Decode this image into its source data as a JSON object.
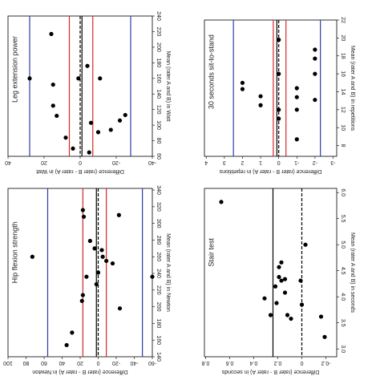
{
  "chart_data": [
    {
      "type": "scatter",
      "title": "Leg extension power",
      "xlabel": "Mean (rater A and B) in Watt",
      "ylabel": "Difference (rater B - rater A) in Watt",
      "x": [
        217,
        160,
        152,
        125,
        112,
        84,
        70,
        160,
        176,
        103,
        65,
        160,
        91,
        94,
        106,
        113
      ],
      "values": [
        16,
        28,
        15,
        15,
        13,
        8,
        4,
        1,
        -4,
        -6,
        -5,
        -11,
        -10,
        -17,
        -22,
        -25
      ],
      "xlim": [
        60,
        240
      ],
      "xticks": [
        60,
        80,
        100,
        120,
        140,
        160,
        180,
        200,
        220,
        240
      ],
      "ylim": [
        40,
        -40
      ],
      "yticks": [
        40,
        20,
        0,
        -20,
        -40
      ],
      "lines": [
        {
          "value": 28,
          "color": "#2a3ea8",
          "style": "solid"
        },
        {
          "value": -28,
          "color": "#2a3ea8",
          "style": "solid"
        },
        {
          "value": 6,
          "color": "#d62828",
          "style": "solid"
        },
        {
          "value": -7,
          "color": "#d62828",
          "style": "solid"
        },
        {
          "value": -1,
          "color": "#000000",
          "style": "solid"
        },
        {
          "value": 0,
          "color": "#000000",
          "style": "dashed"
        }
      ]
    },
    {
      "type": "scatter",
      "title": "30 seconds sit-to-stand",
      "xlabel": "Mean (rater A and B) in repetitions",
      "ylabel": "Difference (rater B - rater A) in repetitions",
      "x": [
        15,
        14.3,
        13.5,
        12.5,
        19.8,
        16,
        12,
        11,
        14.4,
        13.4,
        12,
        8.7,
        18.7,
        17.7,
        16,
        13.1
      ],
      "values": [
        2,
        2,
        1,
        1,
        0,
        0,
        0,
        0,
        -1,
        -1,
        -1,
        -1,
        -2,
        -2,
        -2,
        -2
      ],
      "xlim": [
        6.8,
        22
      ],
      "xticks": [
        8,
        10,
        12,
        14,
        16,
        18,
        20,
        22
      ],
      "ylim": [
        4.1,
        -3.2
      ],
      "yticks": [
        4,
        3,
        2,
        1,
        0,
        -1,
        -2,
        -3
      ],
      "lines": [
        {
          "value": 2.5,
          "color": "#2a3ea8",
          "style": "solid"
        },
        {
          "value": -2.3,
          "color": "#2a3ea8",
          "style": "solid"
        },
        {
          "value": 0.3,
          "color": "#d62828",
          "style": "solid"
        },
        {
          "value": -0.4,
          "color": "#d62828",
          "style": "solid"
        },
        {
          "value": 0.1,
          "color": "#000000",
          "style": "solid"
        },
        {
          "value": 0,
          "color": "#000000",
          "style": "dashed"
        }
      ]
    },
    {
      "type": "scatter",
      "title": "Hip flexion strength",
      "xlabel": "Mean (rater A and B) in Newton",
      "ylabel": "Difference (rater B - rater A) in Newton",
      "x": [
        260,
        154,
        169,
        207,
        214,
        316,
        308,
        236,
        279,
        270,
        227,
        241,
        268,
        260,
        255,
        252,
        310,
        198,
        236
      ],
      "values": [
        73,
        35,
        29,
        18,
        17,
        17,
        16,
        13,
        9,
        4,
        2,
        0,
        -4,
        -5,
        -9,
        -16,
        -23,
        -24,
        -60
      ],
      "xlim": [
        140,
        342
      ],
      "xticks": [
        140,
        160,
        180,
        200,
        220,
        240,
        260,
        280,
        300,
        320,
        340
      ],
      "ylim": [
        100,
        -60
      ],
      "yticks": [
        100,
        80,
        60,
        40,
        20,
        0,
        -20,
        -40,
        -60
      ],
      "lines": [
        {
          "value": 56,
          "color": "#2a3ea8",
          "style": "solid"
        },
        {
          "value": -49,
          "color": "#2a3ea8",
          "style": "solid"
        },
        {
          "value": 17,
          "color": "#d62828",
          "style": "solid"
        },
        {
          "value": -9,
          "color": "#d62828",
          "style": "solid"
        },
        {
          "value": 2,
          "color": "#000000",
          "style": "solid"
        },
        {
          "value": 0,
          "color": "#000000",
          "style": "dashed"
        }
      ]
    },
    {
      "type": "scatter",
      "title": "Stair test",
      "xlabel": "Mean (rater A and B) in seconds",
      "ylabel": "Difference (rater B - rater A) in seconds",
      "x": [
        5.82,
        3.97,
        3.65,
        4.2,
        3.88,
        4.57,
        4.38,
        4.66,
        4.31,
        4.34,
        4.08,
        3.65,
        3.58,
        4.31,
        3.85,
        5.0,
        3.62,
        3.23
      ],
      "values": [
        0.67,
        0.31,
        0.26,
        0.22,
        0.21,
        0.19,
        0.19,
        0.17,
        0.17,
        0.14,
        0.14,
        0.12,
        0.09,
        0.01,
        0,
        -0.03,
        -0.16,
        -0.19
      ],
      "xlim": [
        2.85,
        6.08
      ],
      "xticks": [
        {
          "value": 3,
          "label": "3.0"
        },
        3.5,
        {
          "value": 4,
          "label": "4.0"
        },
        4.5,
        {
          "value": 5,
          "label": "5.0"
        },
        5.5,
        {
          "value": 6,
          "label": "6.0"
        }
      ],
      "ylim": [
        0.81,
        -0.29
      ],
      "yticks": [
        0.8,
        0.6,
        0.4,
        0.2,
        0,
        -0.2
      ],
      "lines": [
        {
          "value": 0.24,
          "color": "#000000",
          "style": "solid"
        },
        {
          "value": 0,
          "color": "#000000",
          "style": "dashed"
        }
      ]
    }
  ]
}
